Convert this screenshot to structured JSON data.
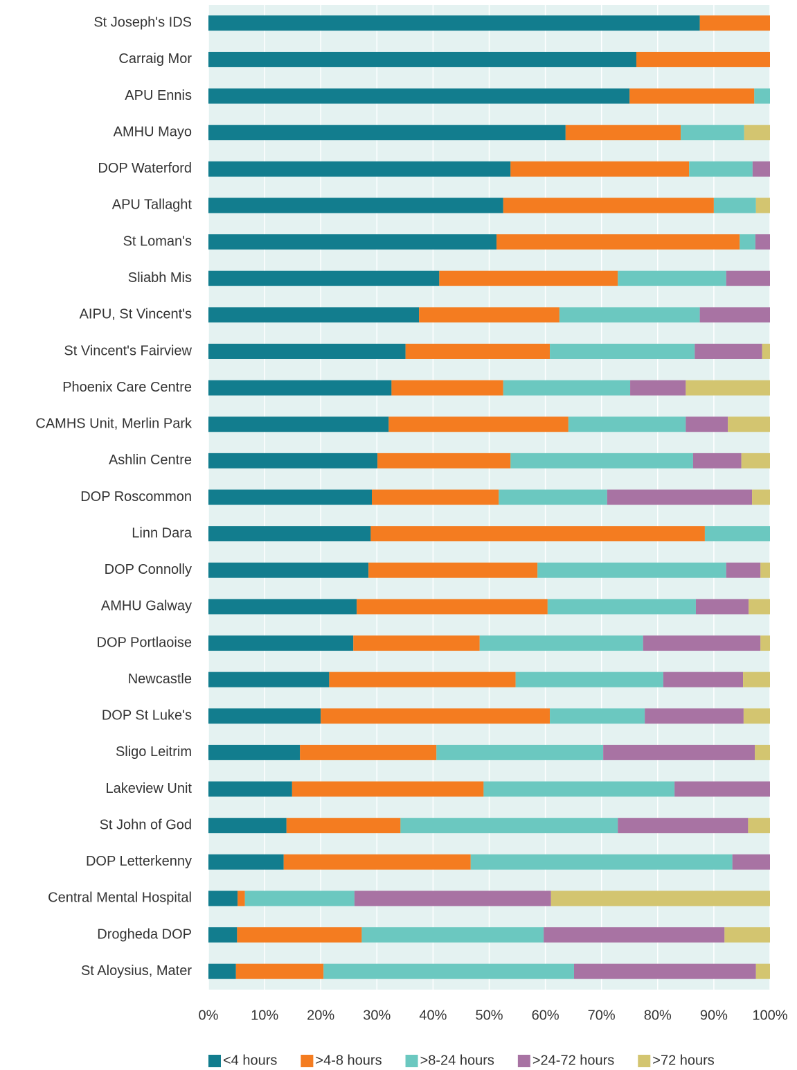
{
  "chart_data": {
    "type": "stacked_barh",
    "categories": [
      "St Joseph's IDS",
      "Carraig Mor",
      "APU Ennis",
      "AMHU Mayo",
      "DOP Waterford",
      "APU Tallaght",
      "St Loman's",
      "Sliabh Mis",
      "AIPU, St Vincent's",
      "St Vincent's Fairview",
      "Phoenix Care Centre",
      "CAMHS Unit, Merlin Park",
      "Ashlin Centre",
      "DOP Roscommon",
      "Linn Dara",
      "DOP Connolly",
      "AMHU Galway",
      "DOP Portlaoise",
      "Newcastle",
      "DOP St Luke's",
      "Sligo Leitrim",
      "Lakeview Unit",
      "St John of God",
      "DOP Letterkenny",
      "Central Mental Hospital",
      "Drogheda DOP",
      "St Aloysius, Mater"
    ],
    "series": [
      {
        "name": "<4 hours",
        "color": "#127d8e",
        "values": [
          87.5,
          76.2,
          75.0,
          63.6,
          53.8,
          52.5,
          51.3,
          41.1,
          37.5,
          35.1,
          32.6,
          32.1,
          30.1,
          29.1,
          28.9,
          28.5,
          26.4,
          25.8,
          21.5,
          20.0,
          16.3,
          14.9,
          13.9,
          13.4,
          5.2,
          5.1,
          4.9
        ]
      },
      {
        "name": ">4-8 hours",
        "color": "#f47c20",
        "values": [
          12.5,
          23.8,
          22.2,
          20.5,
          31.8,
          37.5,
          43.3,
          31.8,
          25.0,
          25.7,
          19.9,
          32.0,
          23.7,
          22.6,
          59.5,
          30.1,
          34.0,
          22.5,
          33.2,
          40.8,
          24.3,
          34.1,
          20.3,
          33.3,
          1.3,
          22.2,
          15.6
        ]
      },
      {
        "name": ">8-24 hours",
        "color": "#6bc8c0",
        "values": [
          0,
          0,
          2.8,
          11.3,
          11.3,
          7.5,
          2.8,
          19.3,
          25.0,
          25.8,
          22.6,
          20.9,
          32.5,
          19.3,
          11.6,
          33.6,
          26.4,
          29.1,
          26.3,
          16.9,
          29.7,
          34.0,
          38.7,
          46.6,
          19.5,
          32.4,
          44.6
        ]
      },
      {
        "name": ">24-72 hours",
        "color": "#a873a3",
        "values": [
          0,
          0,
          0,
          0,
          3.1,
          0,
          2.6,
          7.8,
          12.5,
          12.0,
          9.9,
          7.5,
          8.6,
          25.8,
          0,
          6.1,
          9.4,
          20.9,
          14.2,
          17.6,
          27.0,
          17.0,
          23.2,
          6.7,
          35.0,
          32.2,
          32.4
        ]
      },
      {
        "name": ">72 hours",
        "color": "#d3c570",
        "values": [
          0,
          0,
          0,
          4.6,
          0,
          2.5,
          0,
          0,
          0,
          1.4,
          15.0,
          7.5,
          5.1,
          3.2,
          0,
          1.7,
          3.8,
          1.7,
          4.8,
          4.7,
          2.7,
          0,
          3.9,
          0,
          39.0,
          8.1,
          2.5
        ]
      }
    ],
    "xlim": [
      0,
      100
    ],
    "xticks": [
      {
        "value": 0,
        "label": "0%"
      },
      {
        "value": 10,
        "label": "10%"
      },
      {
        "value": 20,
        "label": "20%"
      },
      {
        "value": 30,
        "label": "30%"
      },
      {
        "value": 40,
        "label": "40%"
      },
      {
        "value": 50,
        "label": "50%"
      },
      {
        "value": 60,
        "label": "60%"
      },
      {
        "value": 70,
        "label": "70%"
      },
      {
        "value": 80,
        "label": "80%"
      },
      {
        "value": 90,
        "label": "90%"
      },
      {
        "value": 100,
        "label": "100%"
      }
    ],
    "grid": true,
    "legend": "bottom"
  }
}
